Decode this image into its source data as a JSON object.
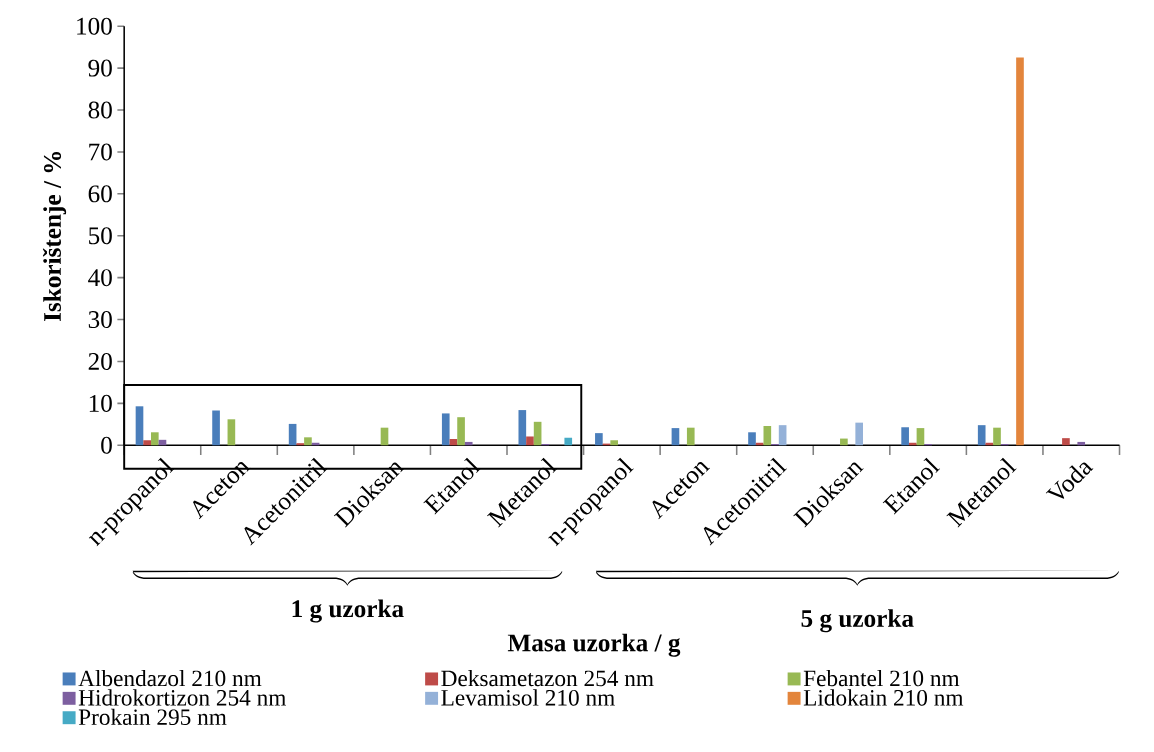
{
  "chart_data": {
    "type": "bar",
    "xlabel": "Masa uzorka / g",
    "ylabel": "Iskorištenje / %",
    "categories": [
      "n-propanol",
      "Aceton",
      "Acetonitril",
      "Dioksan",
      "Etanol",
      "Metanol",
      "n-propanol",
      "Aceton",
      "Acetonitril",
      "Dioksan",
      "Etanol",
      "Metanol",
      "Voda"
    ],
    "series": [
      {
        "name": "Albendazol 210 nm",
        "color": "#4a7ebb",
        "values": [
          9.3,
          8.3,
          5.1,
          null,
          7.6,
          8.4,
          2.9,
          4.1,
          3.1,
          null,
          4.3,
          4.8,
          null
        ]
      },
      {
        "name": "Deksametazon 254 nm",
        "color": "#be4b48",
        "values": [
          1.2,
          null,
          0.5,
          null,
          1.5,
          2.1,
          0.4,
          null,
          0.6,
          null,
          0.6,
          0.6,
          1.7
        ]
      },
      {
        "name": "Febantel 210 nm",
        "color": "#98b954",
        "values": [
          3.1,
          6.2,
          1.9,
          4.2,
          6.7,
          5.6,
          1.2,
          4.2,
          4.6,
          1.6,
          4.1,
          4.2,
          null
        ]
      },
      {
        "name": "Hidrokortizon 254 nm",
        "color": "#7d5fa0",
        "values": [
          1.3,
          null,
          0.6,
          null,
          0.8,
          0.3,
          null,
          null,
          0.3,
          null,
          0.3,
          0.3,
          0.8
        ]
      },
      {
        "name": "Levamisol 210 nm",
        "color": "#94b1d8",
        "values": [
          null,
          null,
          null,
          null,
          null,
          null,
          null,
          null,
          4.8,
          5.4,
          null,
          null,
          null
        ]
      },
      {
        "name": "Lidokain 210 nm",
        "color": "#e3853c",
        "values": [
          null,
          null,
          null,
          null,
          null,
          null,
          null,
          null,
          null,
          null,
          null,
          92.5,
          null
        ]
      },
      {
        "name": "Prokain 295 nm",
        "color": "#46aac5",
        "values": [
          null,
          null,
          null,
          null,
          null,
          1.8,
          null,
          null,
          null,
          null,
          null,
          null,
          null
        ]
      }
    ],
    "ylim": [
      0,
      100
    ],
    "yticks": [
      0,
      10,
      20,
      30,
      40,
      50,
      60,
      70,
      80,
      90,
      100
    ],
    "legend": "bottom",
    "annotations": [
      "1 g uzorka",
      "5 g uzorka"
    ]
  }
}
